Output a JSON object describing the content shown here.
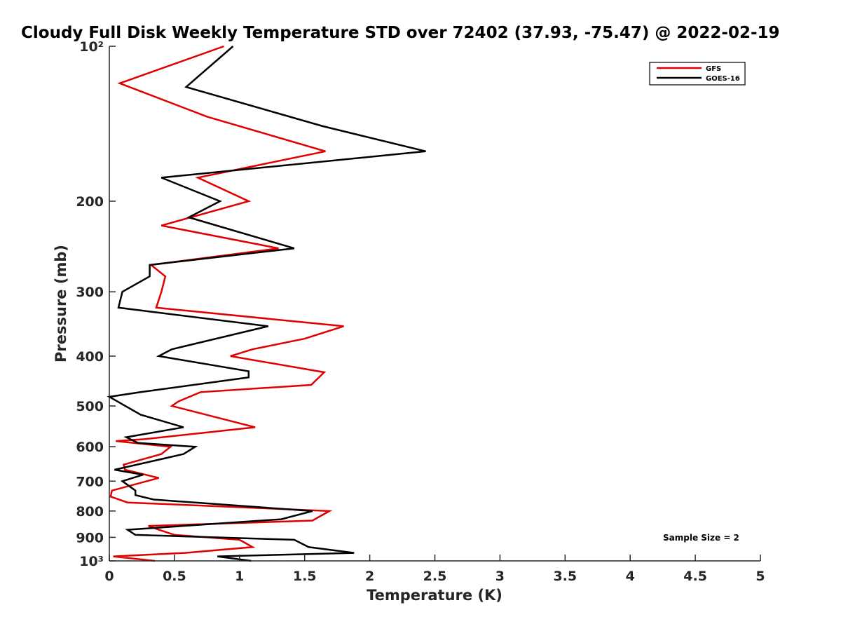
{
  "chart_data": {
    "type": "line",
    "title": "Cloudy Full Disk Weekly Temperature STD over 72402 (37.93, -75.47) @ 2022-02-19",
    "xlabel": "Temperature (K)",
    "ylabel": "Pressure (mb)",
    "xlim": [
      0,
      5
    ],
    "ylim": [
      100,
      1000
    ],
    "y_scale": "log",
    "y_reversed": true,
    "grid": false,
    "legend_position": "top-right",
    "x_ticks": [
      0,
      0.5,
      1,
      1.5,
      2,
      2.5,
      3,
      3.5,
      4,
      4.5,
      5
    ],
    "x_tick_labels": [
      "0",
      "0.5",
      "1",
      "1.5",
      "2",
      "2.5",
      "3",
      "3.5",
      "4",
      "4.5",
      "5"
    ],
    "y_ticks": [
      100,
      200,
      300,
      400,
      500,
      600,
      700,
      800,
      900,
      1000
    ],
    "y_tick_labels": [
      "10²",
      "200",
      "300",
      "400",
      "500",
      "600",
      "700",
      "800",
      "900",
      "10³"
    ],
    "series": [
      {
        "name": "GFS",
        "color": "#e00000",
        "points": [
          [
            0.88,
            100
          ],
          [
            0.08,
            118
          ],
          [
            0.75,
            137
          ],
          [
            1.66,
            160
          ],
          [
            0.68,
            180
          ],
          [
            1.07,
            200
          ],
          [
            0.4,
            223
          ],
          [
            1.3,
            247
          ],
          [
            0.32,
            266
          ],
          [
            0.43,
            280
          ],
          [
            0.4,
            300
          ],
          [
            0.36,
            322
          ],
          [
            1.8,
            350
          ],
          [
            1.5,
            370
          ],
          [
            1.1,
            388
          ],
          [
            0.93,
            400
          ],
          [
            1.65,
            430
          ],
          [
            1.55,
            455
          ],
          [
            0.7,
            470
          ],
          [
            0.53,
            490
          ],
          [
            0.48,
            500
          ],
          [
            1.12,
            550
          ],
          [
            0.27,
            580
          ],
          [
            0.05,
            585
          ],
          [
            0.47,
            600
          ],
          [
            0.4,
            620
          ],
          [
            0.11,
            650
          ],
          [
            0.12,
            665
          ],
          [
            0.38,
            690
          ],
          [
            0.02,
            730
          ],
          [
            0.01,
            750
          ],
          [
            0.14,
            770
          ],
          [
            1.69,
            800
          ],
          [
            1.56,
            835
          ],
          [
            0.3,
            855
          ],
          [
            0.38,
            870
          ],
          [
            0.5,
            890
          ],
          [
            1.0,
            910
          ],
          [
            1.1,
            940
          ],
          [
            0.58,
            965
          ],
          [
            0.03,
            980
          ],
          [
            0.35,
            1000
          ]
        ]
      },
      {
        "name": "GOES-16",
        "color": "#000000",
        "points": [
          [
            0.95,
            100
          ],
          [
            0.59,
            120
          ],
          [
            1.64,
            143
          ],
          [
            2.43,
            160
          ],
          [
            0.4,
            180
          ],
          [
            0.85,
            200
          ],
          [
            0.61,
            215
          ],
          [
            1.42,
            247
          ],
          [
            0.31,
            266
          ],
          [
            0.31,
            280
          ],
          [
            0.1,
            300
          ],
          [
            0.07,
            322
          ],
          [
            1.22,
            350
          ],
          [
            0.48,
            388
          ],
          [
            0.38,
            400
          ],
          [
            1.07,
            428
          ],
          [
            1.07,
            440
          ],
          [
            0.24,
            470
          ],
          [
            0.0,
            480
          ],
          [
            0.24,
            520
          ],
          [
            0.57,
            550
          ],
          [
            0.13,
            575
          ],
          [
            0.22,
            590
          ],
          [
            0.66,
            600
          ],
          [
            0.57,
            620
          ],
          [
            0.04,
            665
          ],
          [
            0.26,
            680
          ],
          [
            0.1,
            700
          ],
          [
            0.2,
            730
          ],
          [
            0.2,
            745
          ],
          [
            0.34,
            760
          ],
          [
            1.56,
            800
          ],
          [
            1.32,
            830
          ],
          [
            0.14,
            870
          ],
          [
            0.2,
            890
          ],
          [
            1.42,
            910
          ],
          [
            1.53,
            940
          ],
          [
            1.88,
            965
          ],
          [
            0.83,
            980
          ],
          [
            1.09,
            1000
          ]
        ]
      }
    ],
    "annotations": [
      {
        "text": "Sample Size = 2"
      }
    ]
  }
}
